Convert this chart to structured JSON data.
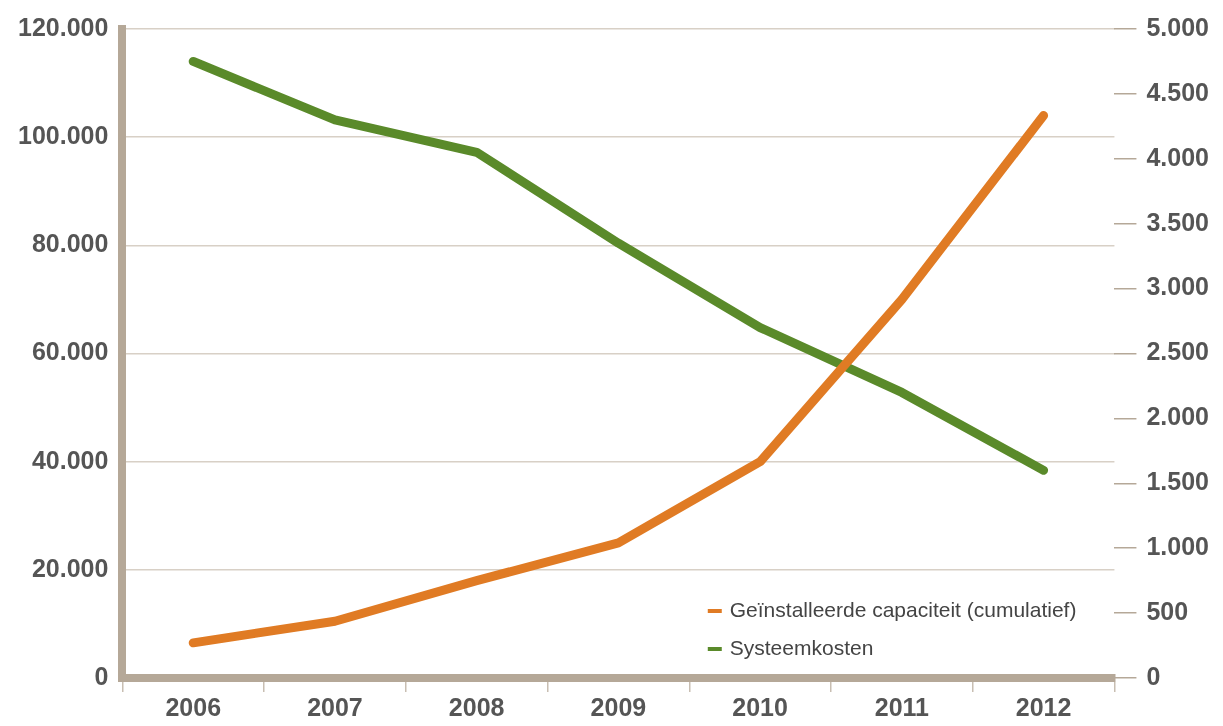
{
  "chart_data": {
    "type": "line",
    "categories": [
      "2006",
      "2007",
      "2008",
      "2009",
      "2010",
      "2011",
      "2012"
    ],
    "series": [
      {
        "name": "Geïnstalleerde capaciteit (cumulatief)",
        "color": "#e07b24",
        "values": [
          6500,
          10500,
          18000,
          25000,
          40000,
          70000,
          104000
        ]
      },
      {
        "name": "Systeemkosten",
        "color": "#5a8a2a",
        "axis": "y2",
        "values": [
          4750,
          4300,
          4050,
          3350,
          2700,
          2200,
          1600
        ]
      }
    ],
    "ylim": [
      0,
      120000
    ],
    "yticks": [
      {
        "value": 0,
        "label": "0"
      },
      {
        "value": 20000,
        "label": "20.000"
      },
      {
        "value": 40000,
        "label": "40.000"
      },
      {
        "value": 60000,
        "label": "60.000"
      },
      {
        "value": 80000,
        "label": "80.000"
      },
      {
        "value": 100000,
        "label": "100.000"
      },
      {
        "value": 120000,
        "label": "120.000"
      }
    ],
    "y2lim": [
      0,
      5000
    ],
    "y2ticks": [
      {
        "value": 0,
        "label": "0"
      },
      {
        "value": 500,
        "label": "500"
      },
      {
        "value": 1000,
        "label": "1.000"
      },
      {
        "value": 1500,
        "label": "1.500"
      },
      {
        "value": 2000,
        "label": "2.000"
      },
      {
        "value": 2500,
        "label": "2.500"
      },
      {
        "value": 3000,
        "label": "3.000"
      },
      {
        "value": 3500,
        "label": "3.500"
      },
      {
        "value": 4000,
        "label": "4.000"
      },
      {
        "value": 4500,
        "label": "4.500"
      },
      {
        "value": 5000,
        "label": "5.000"
      }
    ],
    "grid": "y",
    "legend": "bottom right",
    "marker": "none",
    "line_style": "solid"
  }
}
